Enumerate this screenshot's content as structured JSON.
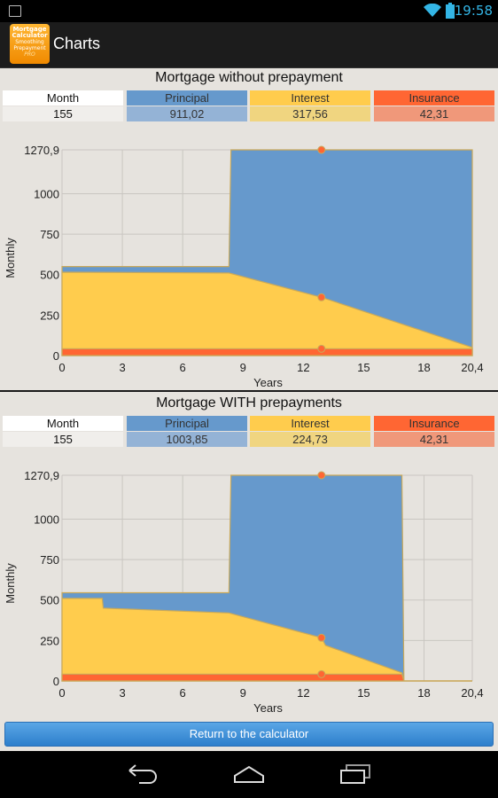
{
  "status": {
    "time": "19:58",
    "battery": "100%"
  },
  "header": {
    "title": "Charts",
    "icon_text": [
      "Mortgage",
      "Calculator",
      "Smoothing",
      "Prepayment",
      "PRO"
    ]
  },
  "colors": {
    "principal": "#6699cc",
    "interest": "#ffcc4d",
    "insurance": "#ff6633",
    "accent": "#33b5e5"
  },
  "chart1": {
    "title": "Mortgage without prepayment",
    "legend": {
      "month_label": "Month",
      "month_value": "155",
      "principal_label": "Principal",
      "principal_value": "911,02",
      "interest_label": "Interest",
      "interest_value": "317,56",
      "insurance_label": "Insurance",
      "insurance_value": "42,31"
    }
  },
  "chart2": {
    "title": "Mortgage WITH prepayments",
    "legend": {
      "month_label": "Month",
      "month_value": "155",
      "principal_label": "Principal",
      "principal_value": "1003,85",
      "interest_label": "Interest",
      "interest_value": "224,73",
      "insurance_label": "Insurance",
      "insurance_value": "42,31"
    }
  },
  "chart_data": [
    {
      "type": "area",
      "stacked": true,
      "ylabel": "Monthly",
      "xlabel": "Years",
      "xlim": [
        0,
        20.4
      ],
      "ylim": [
        0,
        1270.9
      ],
      "x_ticks": [
        "0",
        "3",
        "6",
        "9",
        "12",
        "15",
        "18",
        "20,4"
      ],
      "x_tick_values": [
        0,
        3,
        6,
        9,
        12,
        15,
        18,
        20.4
      ],
      "y_ticks": [
        "0",
        "250",
        "500",
        "750",
        "1000",
        "1270,9"
      ],
      "y_tick_values": [
        0,
        250,
        500,
        750,
        1000,
        1270.9
      ],
      "marker_x": 12.9,
      "series": [
        {
          "name": "Insurance",
          "points": [
            [
              0,
              42
            ],
            [
              20.4,
              42
            ]
          ]
        },
        {
          "name": "Interest",
          "points": [
            [
              0,
              515
            ],
            [
              8.3,
              510
            ],
            [
              12.9,
              360
            ],
            [
              20.4,
              50
            ]
          ]
        },
        {
          "name": "Principal",
          "points": [
            [
              0,
              550
            ],
            [
              8.3,
              550
            ],
            [
              8.4,
              1270.9
            ],
            [
              20.4,
              1270.9
            ]
          ]
        }
      ]
    },
    {
      "type": "area",
      "stacked": true,
      "ylabel": "Monthly",
      "xlabel": "Years",
      "xlim": [
        0,
        20.4
      ],
      "ylim": [
        0,
        1270.9
      ],
      "x_ticks": [
        "0",
        "3",
        "6",
        "9",
        "12",
        "15",
        "18",
        "20,4"
      ],
      "x_tick_values": [
        0,
        3,
        6,
        9,
        12,
        15,
        18,
        20.4
      ],
      "y_ticks": [
        "0",
        "250",
        "500",
        "750",
        "1000",
        "1270,9"
      ],
      "y_tick_values": [
        0,
        250,
        500,
        750,
        1000,
        1270.9
      ],
      "marker_x": 12.9,
      "series": [
        {
          "name": "Insurance",
          "points": [
            [
              0,
              42
            ],
            [
              16.9,
              42
            ],
            [
              17.0,
              0
            ],
            [
              20.4,
              0
            ]
          ]
        },
        {
          "name": "Interest",
          "points": [
            [
              0,
              510
            ],
            [
              2.0,
              510
            ],
            [
              2.05,
              450
            ],
            [
              8.3,
              420
            ],
            [
              12.9,
              267
            ],
            [
              13.1,
              220
            ],
            [
              16.9,
              50
            ],
            [
              17.0,
              0
            ],
            [
              20.4,
              0
            ]
          ]
        },
        {
          "name": "Principal",
          "points": [
            [
              0,
              545
            ],
            [
              8.3,
              545
            ],
            [
              8.4,
              1270.9
            ],
            [
              16.9,
              1270.9
            ],
            [
              17.0,
              0
            ],
            [
              20.4,
              0
            ]
          ]
        }
      ]
    }
  ],
  "button": {
    "label": "Return to the calculator"
  }
}
